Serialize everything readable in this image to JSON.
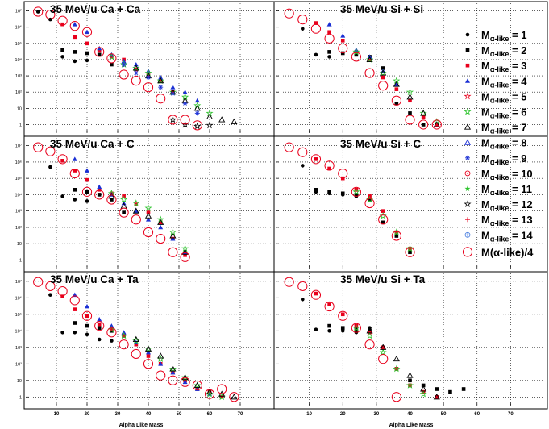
{
  "figure": {
    "xlabel": "Alpha Like Mass",
    "x_ticks": [
      "10",
      "20",
      "30",
      "40",
      "50",
      "60",
      "70"
    ],
    "y_ticks": [
      "1",
      "10",
      "10²",
      "10³",
      "10⁴",
      "10⁵",
      "10⁶",
      "10⁷"
    ]
  },
  "legend": {
    "prefix": "M",
    "sub": "α-like",
    "entries": [
      {
        "value": "= 1",
        "marker": "dot",
        "color": "#000000"
      },
      {
        "value": "= 2",
        "marker": "square",
        "color": "#000000"
      },
      {
        "value": "= 3",
        "marker": "square",
        "color": "#e8001c"
      },
      {
        "value": "= 4",
        "marker": "triangle",
        "color": "#1a2fd4"
      },
      {
        "value": "= 5",
        "marker": "star-open",
        "color": "#e8001c"
      },
      {
        "value": "= 6",
        "marker": "star-open",
        "color": "#2fc42f"
      },
      {
        "value": "= 7",
        "marker": "triangle-open",
        "color": "#000000"
      },
      {
        "value": "= 8",
        "marker": "triangle-open",
        "color": "#1a2fd4"
      },
      {
        "value": "= 9",
        "marker": "asterisk",
        "color": "#1a2fd4"
      },
      {
        "value": "= 10",
        "marker": "circle-dot",
        "color": "#e8001c"
      },
      {
        "value": "= 11",
        "marker": "small-star",
        "color": "#2fc42f"
      },
      {
        "value": "= 12",
        "marker": "star-open",
        "color": "#000000"
      },
      {
        "value": "= 13",
        "marker": "plus",
        "color": "#e8001c"
      },
      {
        "value": "= 14",
        "marker": "circle-cross",
        "color": "#4a7fe0"
      }
    ],
    "total_label": "M(α-like)/4",
    "total_color": "#e8001c"
  },
  "chart_data": [
    {
      "type": "scatter",
      "title": "35 MeV/u Ca + Ca",
      "xlim": [
        0,
        80
      ],
      "yscale": "log",
      "ylim": [
        0.3,
        30000000
      ],
      "grid": true,
      "series": [
        {
          "mult": 1,
          "x": [
            4,
            8,
            12,
            16,
            20
          ],
          "y": [
            9000000,
            3000000,
            15000,
            8000,
            9000
          ]
        },
        {
          "mult": 2,
          "x": [
            12,
            16,
            20,
            24,
            28
          ],
          "y": [
            40000,
            30000,
            25000,
            20000,
            5000
          ]
        },
        {
          "mult": 3,
          "x": [
            12,
            16,
            20,
            24,
            28,
            32,
            36,
            40,
            44,
            48
          ],
          "y": [
            1500000,
            250000,
            100000,
            35000,
            15000,
            10000,
            2500,
            1200,
            500,
            100
          ]
        },
        {
          "mult": 4,
          "x": [
            16,
            20,
            24,
            28,
            32,
            36,
            40,
            44,
            48,
            52,
            56
          ],
          "y": [
            1500000,
            500000,
            50000,
            20000,
            8000,
            5000,
            2000,
            800,
            200,
            100,
            30
          ]
        },
        {
          "mult": 6,
          "x": [
            28,
            32,
            36,
            40,
            44,
            48,
            52,
            56,
            60
          ],
          "y": [
            15000,
            5000,
            3000,
            1500,
            500,
            100,
            50,
            15,
            5
          ]
        },
        {
          "mult": 7,
          "x": [
            36,
            40,
            44,
            48,
            52,
            56,
            60,
            64,
            68
          ],
          "y": [
            3000,
            1000,
            500,
            100,
            30,
            10,
            3,
            2,
            1.5
          ]
        },
        {
          "mult": 9,
          "x": [
            32,
            36,
            40,
            44,
            48,
            52,
            56
          ],
          "y": [
            5000,
            1500,
            800,
            200,
            80,
            20,
            5
          ]
        },
        {
          "mult": 12,
          "x": [
            48,
            52,
            56,
            60
          ],
          "y": [
            2,
            1,
            0.8,
            0.9
          ]
        },
        {
          "mult": "total",
          "x": [
            4,
            8,
            12,
            16,
            20,
            24,
            28,
            32,
            36,
            40,
            44,
            48,
            52,
            56
          ],
          "y": [
            9000000,
            6000000,
            2500000,
            1200000,
            500000,
            30000,
            12000,
            1200,
            500,
            200,
            40,
            2,
            2,
            0.9
          ]
        }
      ]
    },
    {
      "type": "scatter",
      "title": "35 MeV/u Si + Si",
      "xlim": [
        0,
        80
      ],
      "yscale": "log",
      "ylim": [
        0.3,
        30000000
      ],
      "grid": true,
      "series": [
        {
          "mult": 1,
          "x": [
            8,
            12,
            16
          ],
          "y": [
            800000,
            20000,
            15000
          ]
        },
        {
          "mult": 2,
          "x": [
            16,
            20,
            24,
            28,
            32,
            36,
            40,
            44
          ],
          "y": [
            30000,
            25000,
            20000,
            15000,
            3000,
            20,
            5,
            1
          ]
        },
        {
          "mult": 3,
          "x": [
            12,
            16,
            20,
            24,
            28,
            32,
            36,
            40,
            44,
            48
          ],
          "y": [
            1800000,
            500000,
            150000,
            30000,
            10000,
            800,
            150,
            30,
            3,
            1
          ]
        },
        {
          "mult": 4,
          "x": [
            16,
            20,
            24,
            28,
            32,
            36
          ],
          "y": [
            1500000,
            300000,
            40000,
            15000,
            2000,
            300
          ]
        },
        {
          "mult": 6,
          "x": [
            24,
            28,
            32,
            36,
            40,
            44,
            48
          ],
          "y": [
            30000,
            10000,
            1500,
            500,
            100,
            5,
            1.5
          ]
        },
        {
          "mult": 7,
          "x": [
            28,
            32,
            36,
            40,
            44,
            48
          ],
          "y": [
            10000,
            1500,
            300,
            50,
            5,
            1
          ]
        },
        {
          "mult": "total",
          "x": [
            4,
            8,
            12,
            16,
            20,
            24,
            28,
            32,
            36,
            40,
            44,
            48
          ],
          "y": [
            7000000,
            3000000,
            800000,
            200000,
            50000,
            15000,
            1500,
            250,
            30,
            2,
            1,
            1
          ]
        }
      ]
    },
    {
      "type": "scatter",
      "title": "35 MeV/u Ca + C",
      "xlim": [
        0,
        80
      ],
      "yscale": "log",
      "ylim": [
        0.3,
        30000000
      ],
      "grid": true,
      "series": [
        {
          "mult": 1,
          "x": [
            8,
            12,
            16,
            20
          ],
          "y": [
            500000,
            8000,
            5000,
            4000
          ]
        },
        {
          "mult": 2,
          "x": [
            16,
            20,
            24,
            28,
            32
          ],
          "y": [
            20000,
            15000,
            10000,
            5000,
            800
          ]
        },
        {
          "mult": 3,
          "x": [
            12,
            16,
            20,
            24,
            28,
            32,
            36,
            40,
            44,
            48,
            52
          ],
          "y": [
            1200000,
            300000,
            80000,
            20000,
            12000,
            8000,
            2500,
            800,
            200,
            20,
            2
          ]
        },
        {
          "mult": 4,
          "x": [
            16,
            20,
            24,
            28,
            32,
            36,
            40,
            44,
            48,
            52
          ],
          "y": [
            1500000,
            300000,
            30000,
            10000,
            3000,
            1000,
            300,
            100,
            20,
            3
          ]
        },
        {
          "mult": 6,
          "x": [
            28,
            32,
            36,
            40,
            44,
            48,
            52
          ],
          "y": [
            12000,
            5000,
            3000,
            1500,
            300,
            50,
            5
          ]
        },
        {
          "mult": 7,
          "x": [
            28,
            32,
            36,
            40,
            44,
            48,
            52
          ],
          "y": [
            8000,
            2000,
            1000,
            500,
            200,
            30,
            3
          ]
        },
        {
          "mult": "total",
          "x": [
            4,
            8,
            12,
            16,
            20,
            24,
            28,
            32,
            36,
            40,
            44,
            48,
            52
          ],
          "y": [
            8000000,
            4500000,
            1500000,
            200000,
            15000,
            10000,
            5000,
            800,
            300,
            50,
            20,
            3,
            1.5
          ]
        }
      ]
    },
    {
      "type": "scatter",
      "title": "35 MeV/u Si + C",
      "xlim": [
        0,
        80
      ],
      "yscale": "log",
      "ylim": [
        0.3,
        30000000
      ],
      "grid": true,
      "series": [
        {
          "mult": 1,
          "x": [
            8,
            12,
            16,
            20,
            24
          ],
          "y": [
            600000,
            15000,
            12000,
            10000,
            8000
          ]
        },
        {
          "mult": 2,
          "x": [
            12,
            16,
            20,
            24,
            28,
            32,
            36,
            40
          ],
          "y": [
            20000,
            15000,
            12000,
            10000,
            5000,
            200,
            30,
            3
          ]
        },
        {
          "mult": 3,
          "x": [
            12,
            16,
            20,
            24,
            28,
            32,
            36,
            40
          ],
          "y": [
            1500000,
            400000,
            100000,
            20000,
            8000,
            1000,
            50,
            5
          ]
        },
        {
          "mult": 6,
          "x": [
            24,
            28,
            32,
            36,
            40
          ],
          "y": [
            15000,
            5000,
            500,
            50,
            5
          ]
        },
        {
          "mult": "total",
          "x": [
            4,
            8,
            12,
            16,
            20,
            24,
            28,
            32,
            36,
            40
          ],
          "y": [
            8000000,
            4000000,
            1500000,
            600000,
            200000,
            15000,
            3000,
            300,
            30,
            3
          ]
        }
      ]
    },
    {
      "type": "scatter",
      "title": "35 MeV/u Ca + Ta",
      "xlim": [
        0,
        80
      ],
      "yscale": "log",
      "ylim": [
        0.3,
        30000000
      ],
      "grid": true,
      "series": [
        {
          "mult": 1,
          "x": [
            8,
            12,
            16,
            20,
            24,
            28
          ],
          "y": [
            1500000,
            8000,
            8000,
            6000,
            3000,
            2500
          ]
        },
        {
          "mult": 2,
          "x": [
            16,
            20,
            24,
            28,
            32,
            36
          ],
          "y": [
            30000,
            20000,
            15000,
            10000,
            5000,
            1500
          ]
        },
        {
          "mult": 3,
          "x": [
            12,
            16,
            20,
            24,
            28,
            32,
            36,
            40,
            44,
            48,
            52,
            56,
            60,
            64
          ],
          "y": [
            1200000,
            200000,
            80000,
            25000,
            12000,
            5000,
            1500,
            300,
            100,
            30,
            10,
            3,
            2,
            1
          ]
        },
        {
          "mult": 4,
          "x": [
            16,
            20,
            24,
            28,
            32,
            36,
            40,
            44,
            48,
            52,
            56,
            60
          ],
          "y": [
            1500000,
            300000,
            50000,
            20000,
            8000,
            2000,
            500,
            100,
            30,
            8,
            3,
            1.5
          ]
        },
        {
          "mult": 6,
          "x": [
            28,
            32,
            36,
            40,
            44,
            48,
            52,
            56,
            60,
            64
          ],
          "y": [
            12000,
            5000,
            2500,
            800,
            200,
            50,
            15,
            5,
            1.5,
            1
          ]
        },
        {
          "mult": 7,
          "x": [
            36,
            40,
            44,
            48,
            52,
            56,
            60,
            64,
            68
          ],
          "y": [
            3000,
            800,
            300,
            50,
            15,
            5,
            2,
            1.5,
            1
          ]
        },
        {
          "mult": "total",
          "x": [
            4,
            8,
            12,
            16,
            20,
            24,
            28,
            32,
            36,
            40,
            44,
            48,
            52,
            56,
            60,
            64,
            68
          ],
          "y": [
            9000000,
            5000000,
            2500000,
            700000,
            80000,
            20000,
            8000,
            1500,
            400,
            100,
            20,
            10,
            8,
            5,
            1.5,
            3,
            1
          ]
        }
      ]
    },
    {
      "type": "scatter",
      "title": "35 MeV/u Si + Ta",
      "xlim": [
        0,
        80
      ],
      "yscale": "log",
      "ylim": [
        0.3,
        30000000
      ],
      "grid": true,
      "series": [
        {
          "mult": 1,
          "x": [
            8,
            12,
            16,
            20,
            24,
            28
          ],
          "y": [
            800000,
            12000,
            10000,
            10000,
            8000,
            15000
          ]
        },
        {
          "mult": 2,
          "x": [
            16,
            20,
            24,
            28,
            32,
            36,
            40,
            44,
            48,
            52,
            56
          ],
          "y": [
            20000,
            15000,
            12000,
            10000,
            1000,
            50,
            10,
            5,
            3,
            2,
            3
          ]
        },
        {
          "mult": 3,
          "x": [
            12,
            16,
            20,
            24,
            28,
            32,
            36,
            40,
            44,
            48
          ],
          "y": [
            1800000,
            400000,
            100000,
            20000,
            8000,
            1000,
            50,
            5,
            2,
            1
          ]
        },
        {
          "mult": 6,
          "x": [
            24,
            28,
            32,
            36,
            40,
            44
          ],
          "y": [
            15000,
            5000,
            500,
            50,
            5,
            1.5
          ]
        },
        {
          "mult": 7,
          "x": [
            28,
            32,
            36,
            40,
            44,
            48
          ],
          "y": [
            10000,
            1000,
            200,
            20,
            3,
            1
          ]
        },
        {
          "mult": "total",
          "x": [
            4,
            8,
            12,
            16,
            20,
            24,
            28,
            32,
            36
          ],
          "y": [
            9000000,
            5000000,
            1500000,
            300000,
            80000,
            15000,
            1500,
            200,
            1
          ]
        }
      ]
    }
  ]
}
